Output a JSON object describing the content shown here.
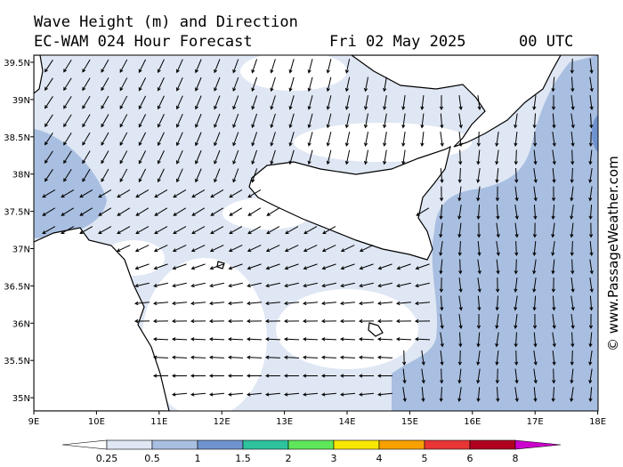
{
  "header": {
    "title": "Wave Height (m) and Direction",
    "model": "EC-WAM 024 Hour Forecast",
    "date": "Fri 02 May 2025",
    "time": "00 UTC"
  },
  "map": {
    "lat_labels": [
      "39.5N",
      "39N",
      "38.5N",
      "38N",
      "37.5N",
      "37N",
      "36.5N",
      "36N",
      "35.5N",
      "35N"
    ],
    "lon_labels": [
      "9E",
      "10E",
      "11E",
      "12E",
      "13E",
      "14E",
      "15E",
      "16E",
      "17E",
      "18E"
    ],
    "credit": "© www.PassageWeather.com"
  },
  "legend": {
    "labels": [
      0.25,
      0.5,
      1,
      1.5,
      2,
      3,
      4,
      5,
      6,
      8
    ],
    "colors": [
      "#ffffff",
      "#dfe7f4",
      "#a9bfe1",
      "#6f93cf",
      "#2ec29d",
      "#5fe65a",
      "#f7e600",
      "#f7a000",
      "#e83535",
      "#b00020",
      "#cc00cc"
    ]
  }
}
